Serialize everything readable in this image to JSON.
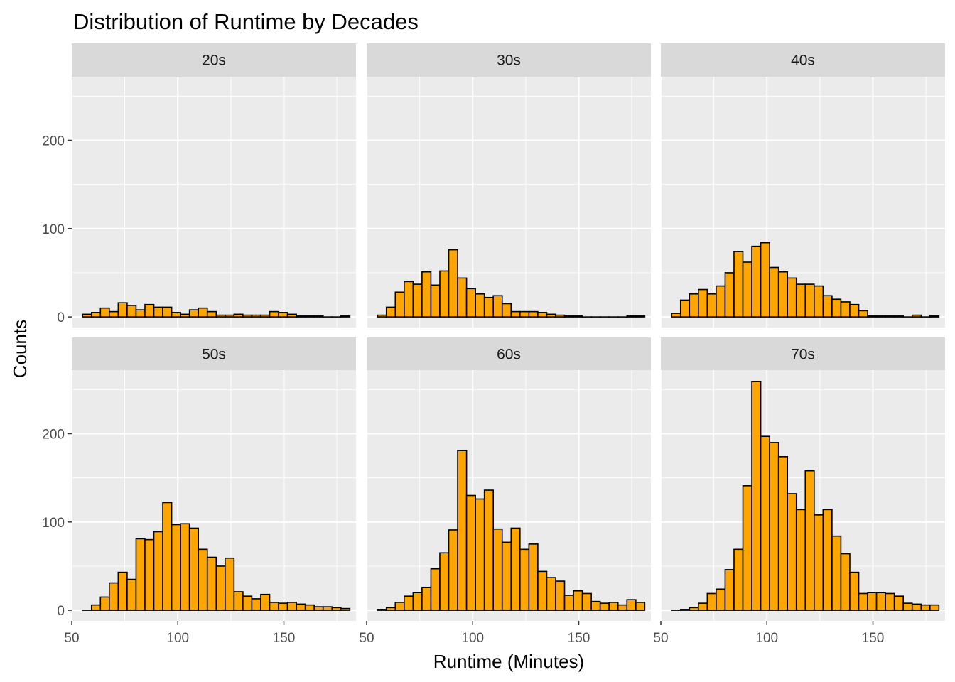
{
  "chart_data": {
    "type": "bar",
    "title": "Distribution of Runtime by Decades",
    "xlabel": "Runtime (Minutes)",
    "ylabel": "Counts",
    "xlim": [
      50,
      184
    ],
    "ylim": [
      -12,
      272
    ],
    "x_ticks": [
      50,
      100,
      150
    ],
    "y_ticks": [
      0,
      100,
      200
    ],
    "bin_width": 4.2,
    "bin_start": 55.1,
    "colors": {
      "fill": "#FFA500",
      "stroke": "#000000",
      "panel_bg": "#EBEBEB",
      "strip_bg": "#D9D9D9",
      "grid": "#FFFFFF",
      "axis_text": "#4D4D4D"
    },
    "panels": [
      {
        "label": "20s",
        "counts": [
          3,
          5,
          10,
          6,
          16,
          13,
          8,
          14,
          11,
          11,
          5,
          3,
          8,
          10,
          6,
          2,
          2,
          3,
          2,
          2,
          2,
          6,
          5,
          3,
          1,
          1,
          1,
          0,
          0,
          1
        ]
      },
      {
        "label": "30s",
        "counts": [
          2,
          11,
          28,
          40,
          37,
          51,
          36,
          52,
          76,
          44,
          32,
          26,
          22,
          24,
          15,
          6,
          6,
          6,
          5,
          3,
          2,
          1,
          1,
          0,
          0,
          0,
          0,
          0,
          1,
          1
        ]
      },
      {
        "label": "40s",
        "counts": [
          4,
          19,
          26,
          31,
          26,
          35,
          50,
          74,
          62,
          80,
          84,
          56,
          51,
          44,
          37,
          37,
          35,
          24,
          20,
          17,
          14,
          7,
          1,
          1,
          1,
          1,
          0,
          2,
          0,
          1
        ]
      },
      {
        "label": "50s",
        "counts": [
          0,
          6,
          15,
          31,
          43,
          35,
          81,
          80,
          89,
          122,
          97,
          98,
          93,
          69,
          60,
          50,
          59,
          21,
          16,
          13,
          18,
          9,
          8,
          9,
          7,
          6,
          4,
          4,
          3,
          2
        ]
      },
      {
        "label": "60s",
        "counts": [
          1,
          3,
          9,
          16,
          20,
          26,
          47,
          65,
          91,
          181,
          130,
          126,
          136,
          92,
          77,
          93,
          69,
          75,
          44,
          37,
          33,
          17,
          22,
          19,
          10,
          8,
          9,
          6,
          12,
          9
        ]
      },
      {
        "label": "70s",
        "counts": [
          0,
          1,
          3,
          8,
          19,
          24,
          46,
          69,
          141,
          259,
          197,
          190,
          174,
          132,
          114,
          158,
          108,
          114,
          84,
          64,
          43,
          19,
          20,
          20,
          19,
          16,
          8,
          7,
          6,
          6
        ]
      }
    ]
  }
}
